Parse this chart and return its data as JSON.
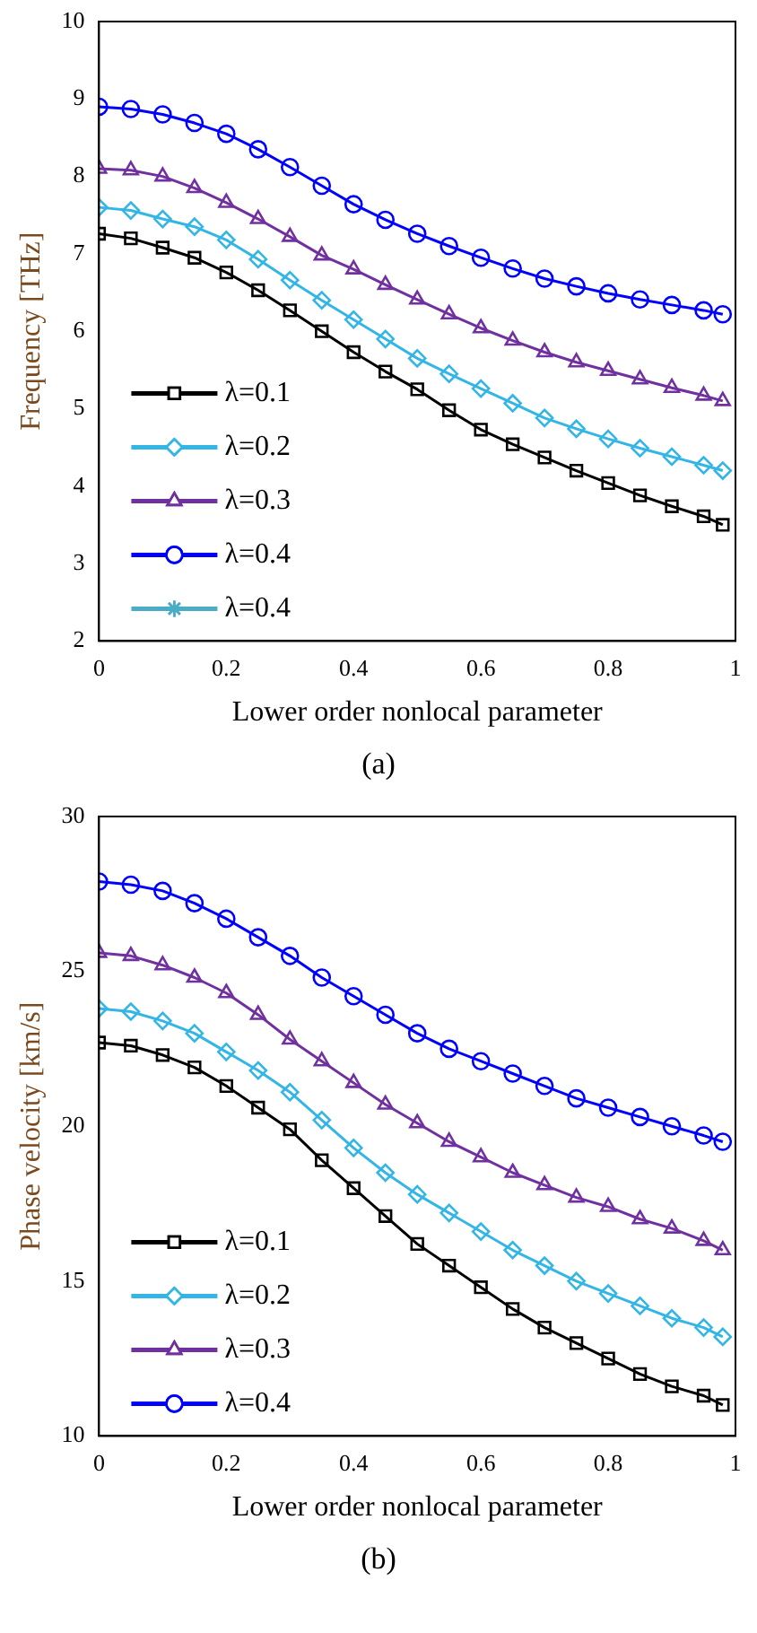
{
  "chart_data": [
    {
      "type": "line",
      "xlabel": "Lower order nonlocal parameter",
      "ylabel": "Frequency [THz]",
      "annotations": [
        "(a)"
      ],
      "x": [
        0,
        0.05,
        0.1,
        0.15,
        0.2,
        0.25,
        0.3,
        0.35,
        0.4,
        0.45,
        0.5,
        0.55,
        0.6,
        0.65,
        0.7,
        0.75,
        0.8,
        0.85,
        0.9,
        0.95,
        0.98
      ],
      "xlim": [
        0,
        1
      ],
      "xticks": [
        0,
        0.2,
        0.4,
        0.6,
        0.8,
        1
      ],
      "ylim": [
        2,
        10
      ],
      "yticks": [
        2,
        3,
        4,
        5,
        6,
        7,
        8,
        9,
        10
      ],
      "grid": false,
      "legend": "bottom left",
      "series": [
        {
          "name": "λ=0.1",
          "color": "#000000",
          "marker": "square",
          "values": [
            7.26,
            7.2,
            7.08,
            6.95,
            6.76,
            6.53,
            6.27,
            6.0,
            5.73,
            5.48,
            5.25,
            4.98,
            4.73,
            4.54,
            4.37,
            4.2,
            4.04,
            3.88,
            3.74,
            3.61,
            3.5
          ]
        },
        {
          "name": "λ=0.2",
          "color": "#33b5e5",
          "marker": "diamond",
          "values": [
            7.6,
            7.56,
            7.45,
            7.35,
            7.18,
            6.93,
            6.66,
            6.4,
            6.15,
            5.9,
            5.65,
            5.45,
            5.26,
            5.07,
            4.88,
            4.74,
            4.61,
            4.49,
            4.38,
            4.27,
            4.2
          ]
        },
        {
          "name": "λ=0.3",
          "color": "#7030a0",
          "marker": "triangle",
          "values": [
            8.1,
            8.08,
            8.0,
            7.85,
            7.66,
            7.45,
            7.22,
            6.98,
            6.8,
            6.6,
            6.41,
            6.22,
            6.04,
            5.88,
            5.73,
            5.6,
            5.49,
            5.38,
            5.27,
            5.17,
            5.1
          ]
        },
        {
          "name": "λ=0.4",
          "color": "#0000ff",
          "marker": "circle",
          "values": [
            8.9,
            8.87,
            8.8,
            8.69,
            8.55,
            8.35,
            8.12,
            7.88,
            7.64,
            7.44,
            7.26,
            7.1,
            6.95,
            6.81,
            6.68,
            6.58,
            6.49,
            6.41,
            6.34,
            6.27,
            6.22
          ]
        },
        {
          "name": "λ=0.4",
          "color": "#4bacc6",
          "marker": "star",
          "values": [
            null,
            null,
            null,
            null,
            null,
            null,
            null,
            null,
            null,
            null,
            null,
            null,
            null,
            null,
            null,
            null,
            null,
            null,
            null,
            null,
            null
          ]
        }
      ]
    },
    {
      "type": "line",
      "xlabel": "Lower order nonlocal parameter",
      "ylabel": "Phase velocity [km/s]",
      "annotations": [
        "(b)"
      ],
      "x": [
        0,
        0.05,
        0.1,
        0.15,
        0.2,
        0.25,
        0.3,
        0.35,
        0.4,
        0.45,
        0.5,
        0.55,
        0.6,
        0.65,
        0.7,
        0.75,
        0.8,
        0.85,
        0.9,
        0.95,
        0.98
      ],
      "xlim": [
        0,
        1
      ],
      "xticks": [
        0,
        0.2,
        0.4,
        0.6,
        0.8,
        1
      ],
      "ylim": [
        10,
        30
      ],
      "yticks": [
        10,
        15,
        20,
        25,
        30
      ],
      "grid": false,
      "legend": "bottom left",
      "series": [
        {
          "name": "λ=0.1",
          "color": "#000000",
          "marker": "square",
          "values": [
            22.7,
            22.6,
            22.3,
            21.9,
            21.3,
            20.6,
            19.9,
            18.9,
            18.0,
            17.1,
            16.2,
            15.5,
            14.8,
            14.1,
            13.5,
            13.0,
            12.5,
            12.0,
            11.6,
            11.3,
            11.0
          ]
        },
        {
          "name": "λ=0.2",
          "color": "#33b5e5",
          "marker": "diamond",
          "values": [
            23.8,
            23.7,
            23.4,
            23.0,
            22.4,
            21.8,
            21.1,
            20.2,
            19.3,
            18.5,
            17.8,
            17.2,
            16.6,
            16.0,
            15.5,
            15.0,
            14.6,
            14.2,
            13.8,
            13.5,
            13.2
          ]
        },
        {
          "name": "λ=0.3",
          "color": "#7030a0",
          "marker": "triangle",
          "values": [
            25.6,
            25.5,
            25.2,
            24.8,
            24.3,
            23.6,
            22.8,
            22.1,
            21.4,
            20.7,
            20.1,
            19.5,
            19.0,
            18.5,
            18.1,
            17.7,
            17.4,
            17.0,
            16.7,
            16.3,
            16.0
          ]
        },
        {
          "name": "λ=0.4",
          "color": "#0000ff",
          "marker": "circle",
          "values": [
            27.9,
            27.8,
            27.6,
            27.2,
            26.7,
            26.1,
            25.5,
            24.8,
            24.2,
            23.6,
            23.0,
            22.5,
            22.1,
            21.7,
            21.3,
            20.9,
            20.6,
            20.3,
            20.0,
            19.7,
            19.5
          ]
        }
      ]
    }
  ]
}
